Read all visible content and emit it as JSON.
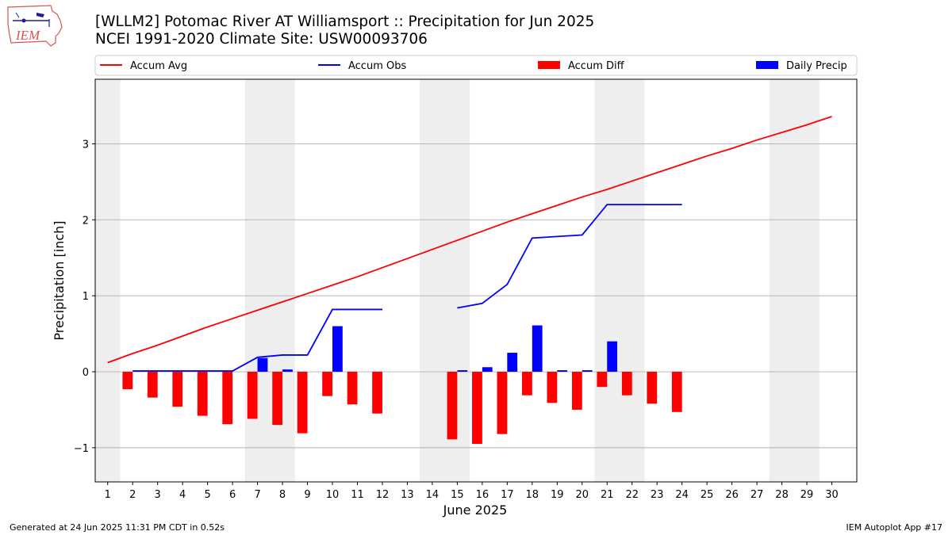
{
  "header": {
    "logo_text": "IEM",
    "title_line1": "[WLLM2] Potomac River  AT Williamsport :: Precipitation for Jun 2025",
    "title_line2": "NCEI 1991-2020 Climate Site: USW00093706"
  },
  "footer": {
    "left": "Generated at 24 Jun 2025 11:31 PM CDT in 0.52s",
    "right": "IEM Autoplot App #17"
  },
  "colors": {
    "accum_avg": "#ff0000",
    "accum_obs": "#0000ff",
    "accum_diff": "#ff0000",
    "daily_precip": "#0000ff",
    "weekend_shade": "#eeeeee",
    "grid": "#b0b0b0"
  },
  "chart_data": {
    "type": "bar",
    "xlabel": "June 2025",
    "ylabel": "Precipitation [inch]",
    "xlim": [
      0.5,
      31
    ],
    "ylim": [
      -1.45,
      3.85
    ],
    "yticks": [
      -1,
      0,
      1,
      2,
      3
    ],
    "ytick_labels": [
      "−1",
      "0",
      "1",
      "2",
      "3"
    ],
    "grid": "horizontal",
    "legend_position": "top",
    "legend": [
      "Accum Avg",
      "Accum Obs",
      "Accum Diff",
      "Daily Precip"
    ],
    "weekend_shading": [
      [
        0.5,
        1.5
      ],
      [
        6.5,
        8.5
      ],
      [
        13.5,
        15.5
      ],
      [
        20.5,
        22.5
      ],
      [
        27.5,
        29.5
      ]
    ],
    "days": [
      1,
      2,
      3,
      4,
      5,
      6,
      7,
      8,
      9,
      10,
      11,
      12,
      13,
      14,
      15,
      16,
      17,
      18,
      19,
      20,
      21,
      22,
      23,
      24,
      25,
      26,
      27,
      28,
      29,
      30
    ],
    "series": [
      {
        "name": "Accum Avg",
        "kind": "line",
        "x": [
          1,
          2,
          3,
          4,
          5,
          6,
          7,
          8,
          9,
          10,
          11,
          12,
          13,
          14,
          15,
          16,
          17,
          18,
          19,
          20,
          21,
          22,
          23,
          24,
          25,
          26,
          27,
          28,
          29,
          30
        ],
        "values": [
          0.12,
          0.24,
          0.35,
          0.47,
          0.59,
          0.7,
          0.81,
          0.92,
          1.03,
          1.14,
          1.25,
          1.37,
          1.49,
          1.61,
          1.73,
          1.85,
          1.97,
          2.08,
          2.19,
          2.3,
          2.4,
          2.51,
          2.62,
          2.73,
          2.84,
          2.94,
          3.05,
          3.15,
          3.25,
          3.36
        ]
      },
      {
        "name": "Accum Obs",
        "kind": "line",
        "segments": [
          {
            "x": [
              2,
              3,
              4,
              5,
              6,
              7,
              8,
              9,
              10,
              11,
              12
            ],
            "values": [
              0.01,
              0.01,
              0.01,
              0.01,
              0.01,
              0.19,
              0.22,
              0.22,
              0.82,
              0.82,
              0.82
            ]
          },
          {
            "x": [
              15,
              16,
              17,
              18,
              19,
              20,
              21,
              22,
              23,
              24
            ],
            "values": [
              0.84,
              0.9,
              1.15,
              1.76,
              1.78,
              1.8,
              2.2,
              2.2,
              2.2,
              2.2
            ]
          }
        ]
      },
      {
        "name": "Accum Diff",
        "kind": "bar",
        "x": [
          2,
          3,
          4,
          5,
          6,
          7,
          8,
          9,
          10,
          11,
          12,
          15,
          16,
          17,
          18,
          19,
          20,
          21,
          22,
          23,
          24
        ],
        "values": [
          -0.23,
          -0.34,
          -0.46,
          -0.58,
          -0.69,
          -0.62,
          -0.7,
          -0.81,
          -0.32,
          -0.43,
          -0.55,
          -0.89,
          -0.95,
          -0.82,
          -0.31,
          -0.41,
          -0.5,
          -0.2,
          -0.31,
          -0.42,
          -0.53
        ]
      },
      {
        "name": "Daily Precip",
        "kind": "bar",
        "x": [
          7,
          8,
          10,
          15,
          16,
          17,
          18,
          19,
          20,
          21
        ],
        "values": [
          0.18,
          0.03,
          0.6,
          0.02,
          0.06,
          0.25,
          0.61,
          0.02,
          0.02,
          0.4
        ]
      }
    ]
  }
}
